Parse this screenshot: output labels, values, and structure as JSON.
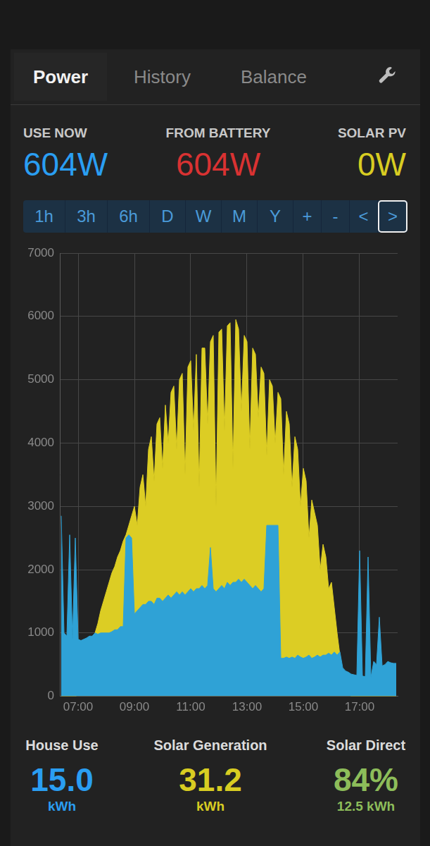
{
  "tabs": [
    "Power",
    "History",
    "Balance"
  ],
  "active_tab": "Power",
  "stats": [
    {
      "label": "USE NOW",
      "value": "604W",
      "color": "#2a9ef2"
    },
    {
      "label": "FROM BATTERY",
      "value": "604W",
      "color": "#d93232"
    },
    {
      "label": "SOLAR PV",
      "value": "0W",
      "color": "#d8cd22"
    }
  ],
  "range_buttons": [
    "1h",
    "3h",
    "6h",
    "D",
    "W",
    "M",
    "Y",
    "+",
    "-",
    "<",
    ">"
  ],
  "selected_button": ">",
  "chart_data": {
    "type": "area",
    "x": [
      6.4,
      6.5,
      6.6,
      6.7,
      6.8,
      6.9,
      7.0,
      7.1,
      7.2,
      7.3,
      7.4,
      7.5,
      7.6,
      7.7,
      7.8,
      7.9,
      8.0,
      8.1,
      8.2,
      8.3,
      8.4,
      8.5,
      8.6,
      8.7,
      8.8,
      8.9,
      9.0,
      9.1,
      9.2,
      9.3,
      9.4,
      9.5,
      9.6,
      9.7,
      9.8,
      9.9,
      10.0,
      10.1,
      10.2,
      10.3,
      10.4,
      10.5,
      10.6,
      10.7,
      10.8,
      10.9,
      11.0,
      11.1,
      11.2,
      11.3,
      11.4,
      11.5,
      11.6,
      11.7,
      11.8,
      11.9,
      12.0,
      12.1,
      12.2,
      12.3,
      12.4,
      12.5,
      12.6,
      12.7,
      12.8,
      12.9,
      13.0,
      13.1,
      13.2,
      13.3,
      13.4,
      13.5,
      13.6,
      13.7,
      13.8,
      13.9,
      14.0,
      14.1,
      14.2,
      14.3,
      14.4,
      14.5,
      14.6,
      14.7,
      14.8,
      14.9,
      15.0,
      15.1,
      15.2,
      15.3,
      15.4,
      15.5,
      15.6,
      15.7,
      15.8,
      15.9,
      16.0,
      16.1,
      16.2,
      16.3,
      16.4,
      16.5,
      16.6,
      16.7,
      16.8,
      16.9,
      17.0,
      17.1,
      17.2,
      17.3,
      17.4,
      17.5,
      17.6,
      17.7,
      17.8,
      17.9,
      18.0,
      18.1,
      18.2,
      18.3
    ],
    "series": [
      {
        "name": "House Use",
        "color": "#2fa2d6",
        "values": [
          2850,
          1000,
          950,
          2550,
          900,
          2500,
          900,
          880,
          900,
          920,
          950,
          950,
          1000,
          980,
          1000,
          1000,
          1000,
          1000,
          1020,
          1050,
          1050,
          1100,
          1100,
          2500,
          2550,
          2500,
          1300,
          1350,
          1400,
          1450,
          1450,
          1500,
          1500,
          1450,
          1550,
          1550,
          1500,
          1550,
          1600,
          1550,
          1600,
          1650,
          1600,
          1650,
          1600,
          1650,
          1700,
          1650,
          1700,
          1700,
          1750,
          1700,
          1750,
          2350,
          1700,
          1650,
          1700,
          1750,
          1700,
          1800,
          1750,
          1800,
          1800,
          1850,
          1800,
          1850,
          1800,
          1750,
          1700,
          1750,
          1700,
          1650,
          1700,
          2700,
          2700,
          2700,
          2700,
          2700,
          600,
          600,
          620,
          600,
          620,
          600,
          650,
          620,
          600,
          620,
          650,
          600,
          620,
          650,
          620,
          650,
          650,
          680,
          650,
          700,
          650,
          700,
          450,
          400,
          380,
          350,
          340,
          330,
          2300,
          320,
          310,
          2200,
          300,
          550,
          500,
          1250,
          480,
          500,
          550,
          530,
          520,
          520
        ]
      },
      {
        "name": "Solar Generation",
        "color": "#dccd24",
        "values": [
          0,
          0,
          0,
          0,
          0,
          0,
          20,
          80,
          200,
          400,
          600,
          850,
          1000,
          1150,
          1350,
          1500,
          1650,
          1800,
          1950,
          2050,
          2200,
          2300,
          2450,
          2550,
          2700,
          2850,
          3000,
          2700,
          3300,
          3500,
          3000,
          3900,
          4100,
          3400,
          4300,
          4400,
          3600,
          4600,
          4000,
          4800,
          4900,
          3900,
          5000,
          5100,
          3500,
          5200,
          5300,
          4200,
          5400,
          3300,
          5500,
          5500,
          4300,
          5600,
          5700,
          3000,
          5750,
          5800,
          4200,
          5850,
          5900,
          3600,
          5950,
          5800,
          4500,
          5700,
          5600,
          3900,
          5500,
          5400,
          4400,
          5200,
          5100,
          3800,
          5000,
          4900,
          4000,
          4800,
          4700,
          3500,
          4500,
          4300,
          3300,
          4100,
          3900,
          3000,
          3600,
          3400,
          2500,
          3100,
          2900,
          2700,
          2000,
          2400,
          2200,
          1700,
          1800,
          1400,
          1000,
          650,
          300,
          120,
          40,
          0,
          0,
          0,
          0,
          0,
          0,
          0,
          0,
          0,
          0,
          0,
          0,
          0,
          0,
          0,
          0,
          0
        ]
      }
    ],
    "xlim": [
      6.35,
      18.35
    ],
    "xticks": [
      {
        "value": 7,
        "label": "07:00"
      },
      {
        "value": 9,
        "label": "09:00"
      },
      {
        "value": 11,
        "label": "11:00"
      },
      {
        "value": 13,
        "label": "13:00"
      },
      {
        "value": 15,
        "label": "15:00"
      },
      {
        "value": 17,
        "label": "17:00"
      }
    ],
    "ylim": [
      0,
      7000
    ],
    "yticks": [
      0,
      1000,
      2000,
      3000,
      4000,
      5000,
      6000,
      7000
    ],
    "grid": true
  },
  "summary": [
    {
      "label": "House Use",
      "value": "15.0",
      "unit": "kWh",
      "color": "#2a9ef2"
    },
    {
      "label": "Solar Generation",
      "value": "31.2",
      "unit": "kWh",
      "color": "#d8cd22"
    },
    {
      "label": "Solar Direct",
      "value": "84%",
      "unit": "12.5 kWh",
      "color": "#8dbd5a"
    }
  ]
}
